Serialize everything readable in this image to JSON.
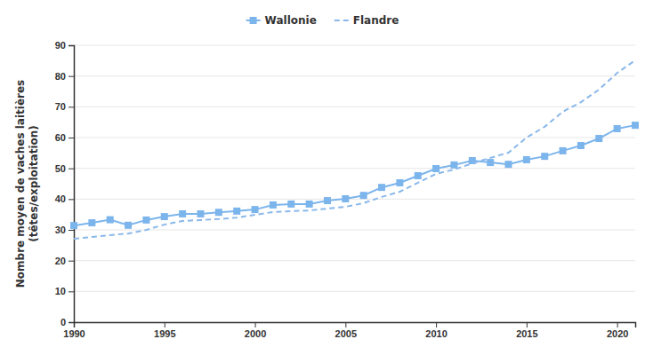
{
  "chart_data": {
    "type": "line",
    "y_label": [
      "Nombre moyen de vaches laitières",
      "(têtes/exploitation)"
    ],
    "x": [
      1990,
      1991,
      1992,
      1993,
      1994,
      1995,
      1996,
      1997,
      1998,
      1999,
      2000,
      2001,
      2002,
      2003,
      2004,
      2005,
      2006,
      2007,
      2008,
      2009,
      2010,
      2011,
      2012,
      2013,
      2014,
      2015,
      2016,
      2017,
      2018,
      2019,
      2020,
      2021
    ],
    "series": [
      {
        "name": "Wallonie",
        "color": "#7cb5ec",
        "marker": "square",
        "line_style": "solid",
        "values": [
          31.4,
          32.3,
          33.3,
          31.5,
          33.2,
          34.3,
          35.2,
          35.2,
          35.7,
          36.1,
          36.6,
          38.1,
          38.4,
          38.4,
          39.5,
          40.1,
          41.2,
          43.8,
          45.3,
          47.6,
          49.9,
          51.1,
          52.5,
          51.9,
          51.3,
          52.8,
          53.9,
          55.7,
          57.4,
          59.7,
          62.9,
          64.0
        ]
      },
      {
        "name": "Flandre",
        "color": "#8ab8ea",
        "marker": "none",
        "line_style": "dashed",
        "values": [
          27.1,
          27.7,
          28.3,
          28.8,
          30.0,
          31.7,
          32.9,
          33.2,
          33.5,
          34.0,
          34.9,
          35.8,
          36.1,
          36.3,
          36.9,
          37.5,
          38.7,
          40.7,
          42.4,
          45.3,
          48.2,
          49.6,
          51.6,
          53.4,
          55.1,
          60.0,
          63.5,
          68.4,
          71.5,
          75.6,
          81.0,
          85.1
        ]
      }
    ],
    "xlim": [
      1990,
      2021
    ],
    "xticks": [
      1990,
      1995,
      2000,
      2005,
      2010,
      2015,
      2020
    ],
    "ylim": [
      0,
      90
    ],
    "yticks": [
      0,
      10,
      20,
      30,
      40,
      50,
      60,
      70,
      80,
      90
    ],
    "grid": true,
    "legend": "top"
  }
}
